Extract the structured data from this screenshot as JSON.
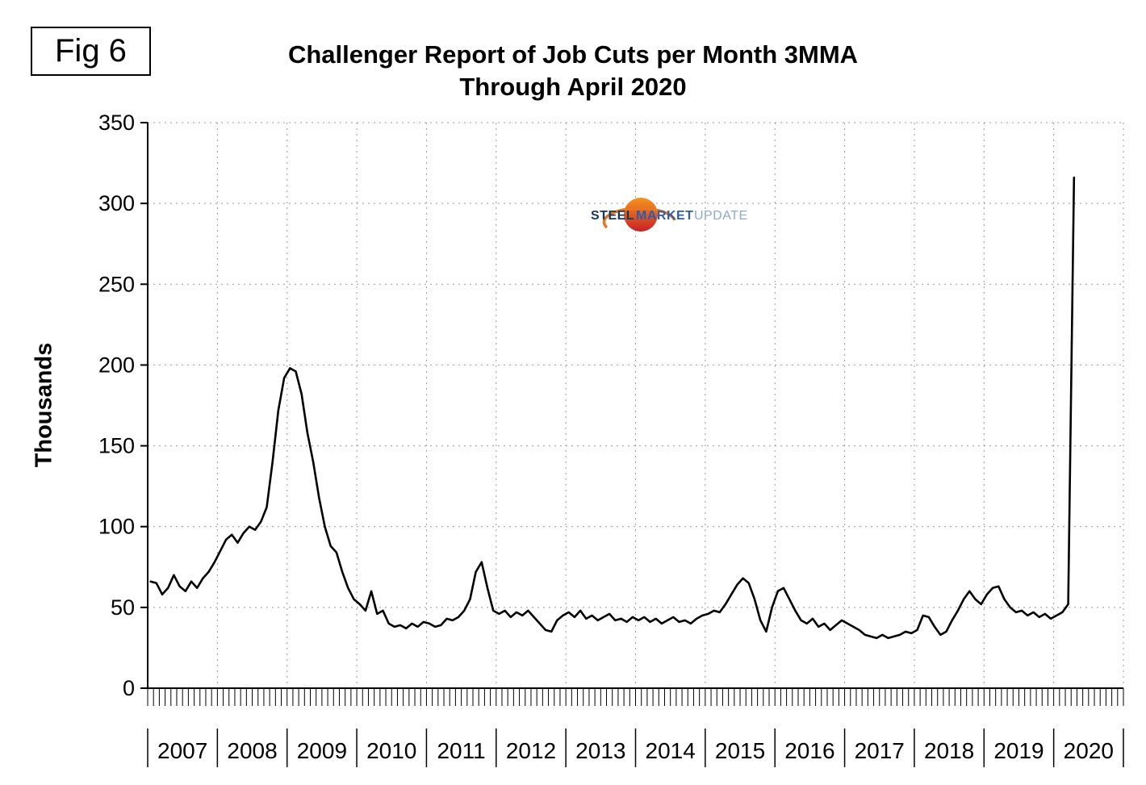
{
  "figure": {
    "label": "Fig 6"
  },
  "title": {
    "line1": "Challenger Report of Job Cuts per Month 3MMA",
    "line2": "Through April 2020"
  },
  "logo": {
    "part1": "STEEL",
    "part2": "MARKET",
    "part3": "UPDATE",
    "sphere_color_top": "#f7941d",
    "sphere_color_bottom": "#c62127",
    "text_color_steel": "#16365c",
    "text_color_market": "#2d5da8",
    "text_color_update": "#8fa9c9"
  },
  "chart_data": {
    "type": "line",
    "title": "Challenger Report of Job Cuts per Month 3MMA Through April 2020",
    "xlabel": "",
    "ylabel": "Thousands",
    "ylim": [
      0,
      350
    ],
    "y_ticks": [
      0,
      50,
      100,
      150,
      200,
      250,
      300,
      350
    ],
    "years": [
      "2007",
      "2008",
      "2009",
      "2010",
      "2011",
      "2012",
      "2013",
      "2014",
      "2015",
      "2016",
      "2017",
      "2018",
      "2019",
      "2020"
    ],
    "frequency": "monthly",
    "first_point": "2007-01",
    "last_point": "2020-04",
    "grid": "dotted",
    "legend": "none",
    "line_color": "#000000",
    "values": [
      66,
      65,
      58,
      62,
      70,
      63,
      60,
      66,
      62,
      68,
      72,
      78,
      85,
      92,
      95,
      90,
      96,
      100,
      98,
      103,
      112,
      140,
      172,
      192,
      198,
      196,
      182,
      158,
      140,
      118,
      100,
      88,
      84,
      72,
      62,
      55,
      52,
      48,
      60,
      46,
      48,
      40,
      38,
      39,
      37,
      40,
      38,
      41,
      40,
      38,
      39,
      43,
      42,
      44,
      48,
      55,
      72,
      78,
      62,
      48,
      46,
      48,
      44,
      47,
      45,
      48,
      44,
      40,
      36,
      35,
      42,
      45,
      47,
      44,
      48,
      43,
      45,
      42,
      44,
      46,
      42,
      43,
      41,
      44,
      42,
      44,
      41,
      43,
      40,
      42,
      44,
      41,
      42,
      40,
      43,
      45,
      46,
      48,
      47,
      52,
      58,
      64,
      68,
      65,
      55,
      42,
      35,
      50,
      60,
      62,
      55,
      48,
      42,
      40,
      43,
      38,
      40,
      36,
      39,
      42,
      40,
      38,
      36,
      33,
      32,
      31,
      33,
      31,
      32,
      33,
      35,
      34,
      36,
      45,
      44,
      38,
      33,
      35,
      42,
      48,
      55,
      60,
      55,
      52,
      58,
      62,
      63,
      55,
      50,
      47,
      48,
      45,
      47,
      44,
      46,
      43,
      45,
      47,
      52,
      316
    ]
  }
}
